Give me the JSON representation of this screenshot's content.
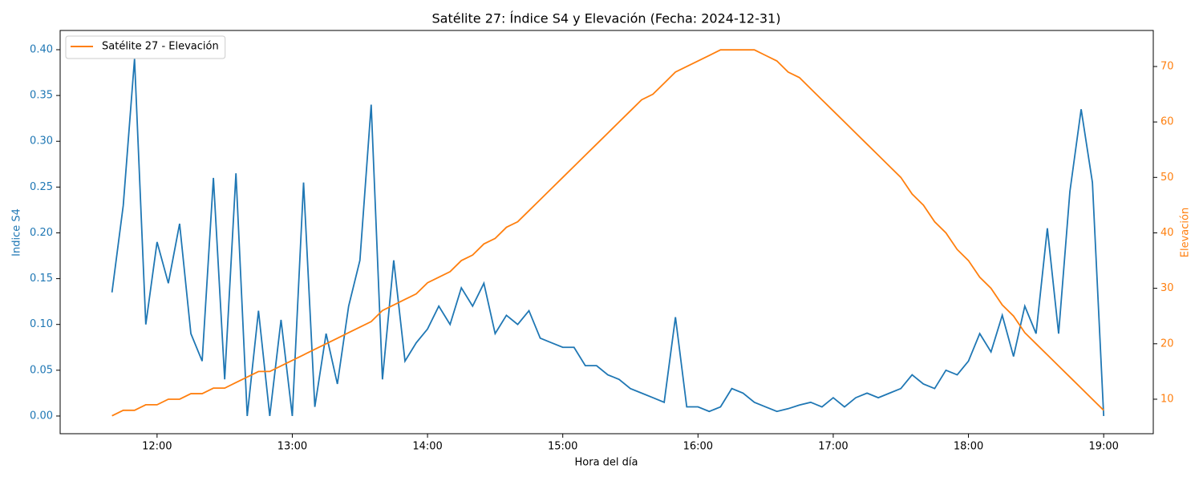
{
  "chart_data": {
    "type": "line",
    "title": "Satélite 27: Índice S4 y Elevación (Fecha: 2024-12-31)",
    "x_label": "Hora del día",
    "y_label": "Indice S4",
    "y2_label": "Elevación",
    "legend_position": "upper left",
    "x": [
      "11:40",
      "11:45",
      "11:50",
      "11:55",
      "12:00",
      "12:05",
      "12:10",
      "12:15",
      "12:20",
      "12:25",
      "12:30",
      "12:35",
      "12:40",
      "12:45",
      "12:50",
      "12:55",
      "13:00",
      "13:05",
      "13:10",
      "13:15",
      "13:20",
      "13:25",
      "13:30",
      "13:35",
      "13:40",
      "13:45",
      "13:50",
      "13:55",
      "14:00",
      "14:05",
      "14:10",
      "14:15",
      "14:20",
      "14:25",
      "14:30",
      "14:35",
      "14:40",
      "14:45",
      "14:50",
      "14:55",
      "15:00",
      "15:05",
      "15:10",
      "15:15",
      "15:20",
      "15:25",
      "15:30",
      "15:35",
      "15:40",
      "15:45",
      "15:50",
      "15:55",
      "16:00",
      "16:05",
      "16:10",
      "16:15",
      "16:20",
      "16:25",
      "16:30",
      "16:35",
      "16:40",
      "16:45",
      "16:50",
      "16:55",
      "17:00",
      "17:05",
      "17:10",
      "17:15",
      "17:20",
      "17:25",
      "17:30",
      "17:35",
      "17:40",
      "17:45",
      "17:50",
      "17:55",
      "18:00",
      "18:05",
      "18:10",
      "18:15",
      "18:20",
      "18:25",
      "18:30",
      "18:35",
      "18:40",
      "18:45",
      "18:50",
      "18:55",
      "19:00"
    ],
    "series": [
      {
        "color": "#1f77b4",
        "axis": "y",
        "values": [
          0.135,
          0.23,
          0.39,
          0.1,
          0.19,
          0.145,
          0.21,
          0.09,
          0.06,
          0.26,
          0.04,
          0.265,
          0,
          0.115,
          0,
          0.105,
          0,
          0.255,
          0.01,
          0.09,
          0.035,
          0.12,
          0.17,
          0.34,
          0.04,
          0.17,
          0.06,
          0.08,
          0.095,
          0.12,
          0.1,
          0.14,
          0.12,
          0.145,
          0.09,
          0.11,
          0.1,
          0.115,
          0.085,
          0.08,
          0.075,
          0.075,
          0.055,
          0.055,
          0.045,
          0.04,
          0.03,
          0.025,
          0.02,
          0.015,
          0.108,
          0.01,
          0.01,
          0.005,
          0.01,
          0.03,
          0.025,
          0.015,
          0.01,
          0.005,
          0.008,
          0.012,
          0.015,
          0.01,
          0.02,
          0.01,
          0.02,
          0.025,
          0.02,
          0.025,
          0.03,
          0.045,
          0.035,
          0.03,
          0.05,
          0.045,
          0.06,
          0.09,
          0.07,
          0.11,
          0.065,
          0.12,
          0.09,
          0.205,
          0.09,
          0.245,
          0.335,
          0.255,
          0
        ]
      },
      {
        "name": "Satélite 27 - Elevación",
        "color": "#ff7f0e",
        "axis": "y2",
        "values": [
          7,
          8,
          8,
          9,
          9,
          10,
          10,
          11,
          11,
          12,
          12,
          13,
          14,
          15,
          15,
          16,
          17,
          18,
          19,
          20,
          21,
          22,
          23,
          24,
          26,
          27,
          28,
          29,
          31,
          32,
          33,
          35,
          36,
          38,
          39,
          41,
          42,
          44,
          46,
          48,
          50,
          52,
          54,
          56,
          58,
          60,
          62,
          64,
          65,
          67,
          69,
          70,
          71,
          72,
          73,
          73,
          73,
          73,
          72,
          71,
          69,
          68,
          66,
          64,
          62,
          60,
          58,
          56,
          54,
          52,
          50,
          47,
          45,
          42,
          40,
          37,
          35,
          32,
          30,
          27,
          25,
          22,
          20,
          18,
          16,
          14,
          12,
          10,
          8
        ]
      }
    ],
    "xlim": [
      "11:17",
      "19:22"
    ],
    "xticks": [
      "12:00",
      "13:00",
      "14:00",
      "15:00",
      "16:00",
      "17:00",
      "18:00",
      "19:00"
    ],
    "ylim": [
      -0.0193,
      0.421
    ],
    "yticks": [
      {
        "value": 0,
        "label": "0.00"
      },
      {
        "value": 0.05,
        "label": "0.05"
      },
      {
        "value": 0.1,
        "label": "0.10"
      },
      {
        "value": 0.15,
        "label": "0.15"
      },
      {
        "value": 0.2,
        "label": "0.20"
      },
      {
        "value": 0.25,
        "label": "0.25"
      },
      {
        "value": 0.3,
        "label": "0.30"
      },
      {
        "value": 0.35,
        "label": "0.35"
      },
      {
        "value": 0.4,
        "label": "0.40"
      }
    ],
    "y2lim": [
      3.78,
      76.5
    ],
    "y2ticks": [
      10,
      20,
      30,
      40,
      50,
      60,
      70
    ],
    "grid": false
  }
}
